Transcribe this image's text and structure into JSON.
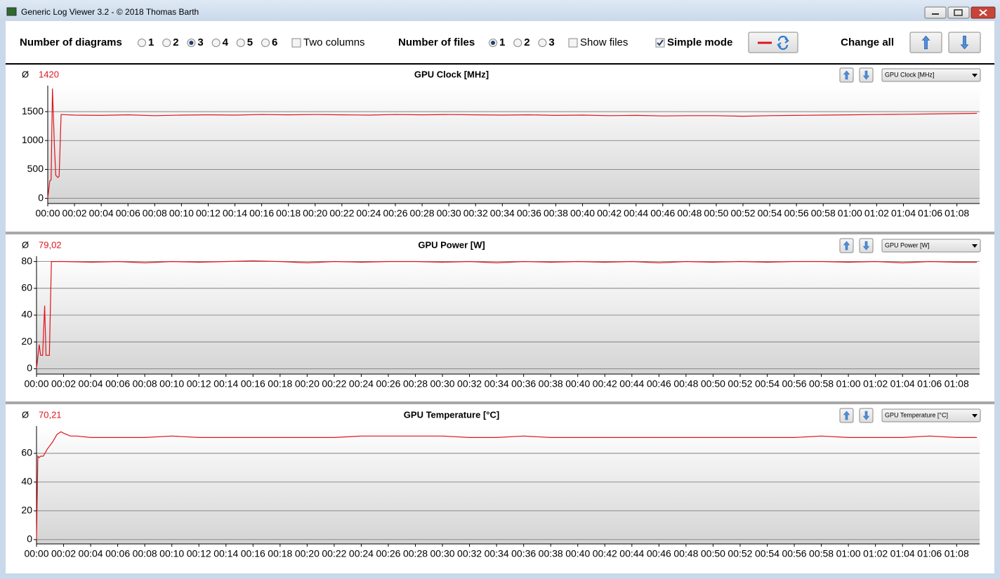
{
  "window": {
    "title": "Generic Log Viewer 3.2 - © 2018 Thomas Barth"
  },
  "toolbar": {
    "diagrams_label": "Number of diagrams",
    "diagram_options": [
      "1",
      "2",
      "3",
      "4",
      "5",
      "6"
    ],
    "diagrams_selected": "3",
    "two_columns": {
      "label": "Two columns",
      "checked": false
    },
    "files_label": "Number of files",
    "file_options": [
      "1",
      "2",
      "3"
    ],
    "files_selected": "1",
    "show_files": {
      "label": "Show files",
      "checked": false
    },
    "simple_mode": {
      "label": "Simple mode",
      "checked": true
    },
    "change_all": "Change all"
  },
  "chart_data": [
    {
      "type": "line",
      "title": "GPU Clock [MHz]",
      "average_symbol": "Ø",
      "average": "1420",
      "selector": "GPU Clock [MHz]",
      "color": "#e0141e",
      "grid": true,
      "x": [
        0,
        0.15,
        0.25,
        0.35,
        0.5,
        0.6,
        0.75,
        0.85,
        1.0,
        2,
        4,
        6,
        8,
        10,
        12,
        14,
        16,
        18,
        20,
        22,
        24,
        26,
        28,
        30,
        32,
        34,
        36,
        38,
        40,
        42,
        44,
        46,
        48,
        50,
        52,
        54,
        56,
        58,
        60,
        62,
        64,
        66,
        68,
        69.5
      ],
      "values": [
        0,
        300,
        320,
        1900,
        900,
        400,
        360,
        380,
        1450,
        1440,
        1435,
        1445,
        1430,
        1440,
        1445,
        1440,
        1450,
        1445,
        1450,
        1445,
        1440,
        1450,
        1445,
        1450,
        1445,
        1440,
        1445,
        1435,
        1440,
        1430,
        1435,
        1425,
        1430,
        1430,
        1420,
        1430,
        1435,
        1440,
        1445,
        1450,
        1455,
        1460,
        1465,
        1470
      ],
      "xlim": [
        0,
        69.7
      ],
      "ylim": [
        -90,
        1950
      ],
      "yticks": [
        0,
        500,
        1000,
        1500
      ],
      "xticks": [
        {
          "value": 0,
          "label": "00:00"
        },
        {
          "value": 2,
          "label": "00:02"
        },
        {
          "value": 4,
          "label": "00:04"
        },
        {
          "value": 6,
          "label": "00:06"
        },
        {
          "value": 8,
          "label": "00:08"
        },
        {
          "value": 10,
          "label": "00:10"
        },
        {
          "value": 12,
          "label": "00:12"
        },
        {
          "value": 14,
          "label": "00:14"
        },
        {
          "value": 16,
          "label": "00:16"
        },
        {
          "value": 18,
          "label": "00:18"
        },
        {
          "value": 20,
          "label": "00:20"
        },
        {
          "value": 22,
          "label": "00:22"
        },
        {
          "value": 24,
          "label": "00:24"
        },
        {
          "value": 26,
          "label": "00:26"
        },
        {
          "value": 28,
          "label": "00:28"
        },
        {
          "value": 30,
          "label": "00:30"
        },
        {
          "value": 32,
          "label": "00:32"
        },
        {
          "value": 34,
          "label": "00:34"
        },
        {
          "value": 36,
          "label": "00:36"
        },
        {
          "value": 38,
          "label": "00:38"
        },
        {
          "value": 40,
          "label": "00:40"
        },
        {
          "value": 42,
          "label": "00:42"
        },
        {
          "value": 44,
          "label": "00:44"
        },
        {
          "value": 46,
          "label": "00:46"
        },
        {
          "value": 48,
          "label": "00:48"
        },
        {
          "value": 50,
          "label": "00:50"
        },
        {
          "value": 52,
          "label": "00:52"
        },
        {
          "value": 54,
          "label": "00:54"
        },
        {
          "value": 56,
          "label": "00:56"
        },
        {
          "value": 58,
          "label": "00:58"
        },
        {
          "value": 60,
          "label": "01:00"
        },
        {
          "value": 62,
          "label": "01:02"
        },
        {
          "value": 64,
          "label": "01:04"
        },
        {
          "value": 66,
          "label": "01:06"
        },
        {
          "value": 68,
          "label": "01:08"
        }
      ]
    },
    {
      "type": "line",
      "title": "GPU Power [W]",
      "average_symbol": "Ø",
      "average": "79,02",
      "selector": "GPU Power [W]",
      "color": "#e0141e",
      "grid": true,
      "x": [
        0,
        0.2,
        0.3,
        0.45,
        0.6,
        0.7,
        0.8,
        0.95,
        1.1,
        1.25,
        2,
        4,
        6,
        8,
        10,
        12,
        14,
        16,
        18,
        20,
        22,
        24,
        26,
        28,
        30,
        32,
        34,
        36,
        38,
        40,
        42,
        44,
        46,
        48,
        50,
        52,
        54,
        56,
        58,
        60,
        62,
        64,
        66,
        68,
        69.5
      ],
      "values": [
        0,
        18,
        10,
        10,
        47,
        10,
        10,
        10,
        80,
        80,
        80,
        79.5,
        80,
        79,
        80,
        79.5,
        80,
        80.5,
        80,
        79,
        80,
        79.5,
        80,
        80,
        79.5,
        80,
        79,
        80,
        79.5,
        80,
        79.5,
        80,
        79,
        80,
        79.5,
        80,
        79.5,
        80,
        80,
        79.5,
        80,
        79,
        80,
        79.5,
        79.5
      ],
      "xlim": [
        0,
        69.7
      ],
      "ylim": [
        -4,
        84
      ],
      "yticks": [
        0,
        20,
        40,
        60,
        80
      ],
      "xticks": [
        {
          "value": 0,
          "label": "00:00"
        },
        {
          "value": 2,
          "label": "00:02"
        },
        {
          "value": 4,
          "label": "00:04"
        },
        {
          "value": 6,
          "label": "00:06"
        },
        {
          "value": 8,
          "label": "00:08"
        },
        {
          "value": 10,
          "label": "00:10"
        },
        {
          "value": 12,
          "label": "00:12"
        },
        {
          "value": 14,
          "label": "00:14"
        },
        {
          "value": 16,
          "label": "00:16"
        },
        {
          "value": 18,
          "label": "00:18"
        },
        {
          "value": 20,
          "label": "00:20"
        },
        {
          "value": 22,
          "label": "00:22"
        },
        {
          "value": 24,
          "label": "00:24"
        },
        {
          "value": 26,
          "label": "00:26"
        },
        {
          "value": 28,
          "label": "00:28"
        },
        {
          "value": 30,
          "label": "00:30"
        },
        {
          "value": 32,
          "label": "00:32"
        },
        {
          "value": 34,
          "label": "00:34"
        },
        {
          "value": 36,
          "label": "00:36"
        },
        {
          "value": 38,
          "label": "00:38"
        },
        {
          "value": 40,
          "label": "00:40"
        },
        {
          "value": 42,
          "label": "00:42"
        },
        {
          "value": 44,
          "label": "00:44"
        },
        {
          "value": 46,
          "label": "00:46"
        },
        {
          "value": 48,
          "label": "00:48"
        },
        {
          "value": 50,
          "label": "00:50"
        },
        {
          "value": 52,
          "label": "00:52"
        },
        {
          "value": 54,
          "label": "00:54"
        },
        {
          "value": 56,
          "label": "00:56"
        },
        {
          "value": 58,
          "label": "00:58"
        },
        {
          "value": 60,
          "label": "01:00"
        },
        {
          "value": 62,
          "label": "01:02"
        },
        {
          "value": 64,
          "label": "01:04"
        },
        {
          "value": 66,
          "label": "01:06"
        },
        {
          "value": 68,
          "label": "01:08"
        }
      ]
    },
    {
      "type": "line",
      "title": "GPU Temperature [°C]",
      "average_symbol": "Ø",
      "average": "70,21",
      "selector": "GPU Temperature [°C]",
      "color": "#e0141e",
      "grid": true,
      "x": [
        0,
        0.1,
        0.2,
        0.3,
        0.5,
        0.8,
        1.2,
        1.5,
        1.8,
        2.0,
        2.5,
        3,
        4,
        6,
        8,
        10,
        12,
        14,
        16,
        18,
        20,
        22,
        24,
        26,
        28,
        30,
        32,
        34,
        36,
        38,
        40,
        42,
        44,
        46,
        48,
        50,
        52,
        54,
        56,
        58,
        60,
        62,
        64,
        66,
        68,
        69.5
      ],
      "values": [
        0,
        58,
        57,
        58,
        58,
        63,
        68,
        73,
        75,
        74,
        72,
        72,
        71,
        71,
        71,
        72,
        71,
        71,
        71,
        71,
        71,
        71,
        72,
        72,
        72,
        72,
        71,
        71,
        72,
        71,
        71,
        71,
        71,
        71,
        71,
        71,
        71,
        71,
        71,
        72,
        71,
        71,
        71,
        72,
        71,
        71
      ],
      "xlim": [
        0,
        69.7
      ],
      "ylim": [
        -3,
        79
      ],
      "yticks": [
        0,
        20,
        40,
        60
      ],
      "xticks": [
        {
          "value": 0,
          "label": "00:00"
        },
        {
          "value": 2,
          "label": "00:02"
        },
        {
          "value": 4,
          "label": "00:04"
        },
        {
          "value": 6,
          "label": "00:06"
        },
        {
          "value": 8,
          "label": "00:08"
        },
        {
          "value": 10,
          "label": "00:10"
        },
        {
          "value": 12,
          "label": "00:12"
        },
        {
          "value": 14,
          "label": "00:14"
        },
        {
          "value": 16,
          "label": "00:16"
        },
        {
          "value": 18,
          "label": "00:18"
        },
        {
          "value": 20,
          "label": "00:20"
        },
        {
          "value": 22,
          "label": "00:22"
        },
        {
          "value": 24,
          "label": "00:24"
        },
        {
          "value": 26,
          "label": "00:26"
        },
        {
          "value": 28,
          "label": "00:28"
        },
        {
          "value": 30,
          "label": "00:30"
        },
        {
          "value": 32,
          "label": "00:32"
        },
        {
          "value": 34,
          "label": "00:34"
        },
        {
          "value": 36,
          "label": "00:36"
        },
        {
          "value": 38,
          "label": "00:38"
        },
        {
          "value": 40,
          "label": "00:40"
        },
        {
          "value": 42,
          "label": "00:42"
        },
        {
          "value": 44,
          "label": "00:44"
        },
        {
          "value": 46,
          "label": "00:46"
        },
        {
          "value": 48,
          "label": "00:48"
        },
        {
          "value": 50,
          "label": "00:50"
        },
        {
          "value": 52,
          "label": "00:52"
        },
        {
          "value": 54,
          "label": "00:54"
        },
        {
          "value": 56,
          "label": "00:56"
        },
        {
          "value": 58,
          "label": "00:58"
        },
        {
          "value": 60,
          "label": "01:00"
        },
        {
          "value": 62,
          "label": "01:02"
        },
        {
          "value": 64,
          "label": "01:04"
        },
        {
          "value": 66,
          "label": "01:06"
        },
        {
          "value": 68,
          "label": "01:08"
        }
      ]
    }
  ]
}
